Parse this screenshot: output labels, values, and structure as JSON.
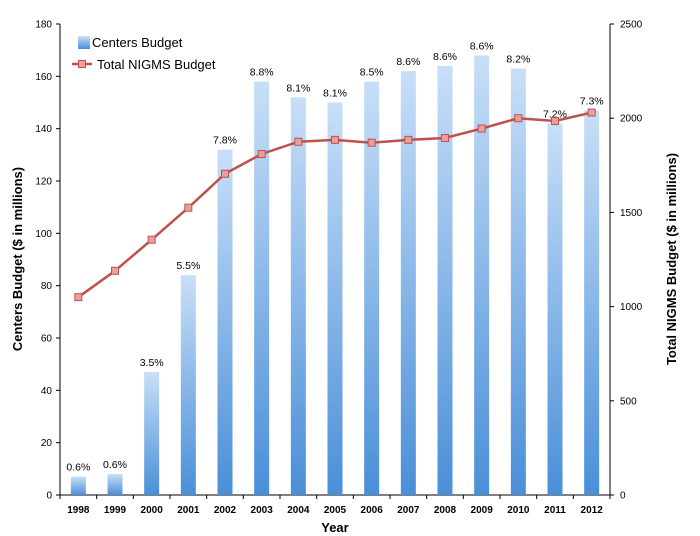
{
  "chart_data": {
    "type": "bar",
    "categories": [
      "1998",
      "1999",
      "2000",
      "2001",
      "2002",
      "2003",
      "2004",
      "2005",
      "2006",
      "2007",
      "2008",
      "2009",
      "2010",
      "2011",
      "2012"
    ],
    "series": [
      {
        "name": "Centers Budget",
        "type": "bar",
        "axis": "left",
        "values": [
          7,
          8,
          47,
          84,
          132,
          158,
          152,
          150,
          158,
          162,
          164,
          168,
          163,
          142,
          147
        ],
        "labels": [
          "0.6%",
          "0.6%",
          "3.5%",
          "5.5%",
          "7.8%",
          "8.8%",
          "8.1%",
          "8.1%",
          "8.5%",
          "8.6%",
          "8.6%",
          "8.6%",
          "8.2%",
          "7.2%",
          "7.3%"
        ]
      },
      {
        "name": "Total NIGMS Budget",
        "type": "line",
        "axis": "right",
        "values": [
          1050,
          1190,
          1355,
          1525,
          1705,
          1810,
          1875,
          1885,
          1870,
          1885,
          1895,
          1945,
          2000,
          1985,
          2030
        ]
      }
    ],
    "xlabel": "Year",
    "ylabel": "Centers Budget ($ in millions)",
    "y2label": "Total NIGMS Budget ($ in millions)",
    "ylim": [
      0,
      180
    ],
    "yticks": [
      "0",
      "20",
      "40",
      "60",
      "80",
      "100",
      "120",
      "140",
      "160",
      "180"
    ],
    "y2lim": [
      0,
      2500
    ],
    "y2ticks": [
      "0",
      "500",
      "1000",
      "1500",
      "2000",
      "2500"
    ],
    "grid": false,
    "legend_position": "top-left",
    "colors": {
      "bar_top": "#c8dff8",
      "bar_bottom": "#4a8fd8",
      "line": "#c0504d",
      "marker_fill": "#e8a09c"
    }
  }
}
